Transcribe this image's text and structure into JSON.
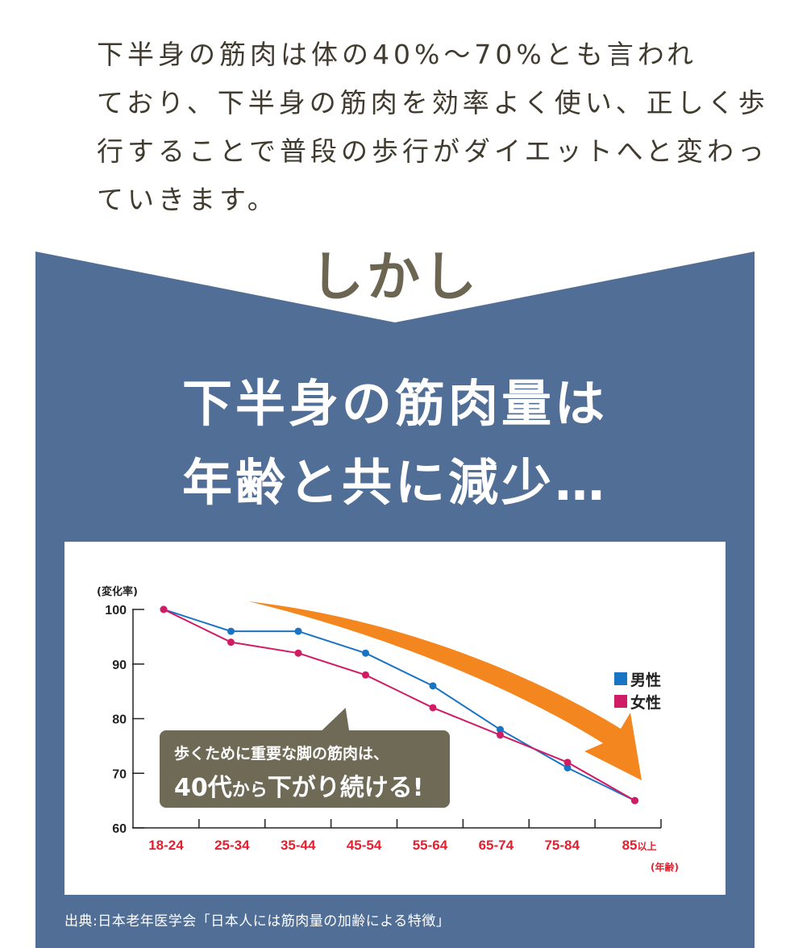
{
  "intro": {
    "lines": [
      "下半身の筋肉は体の40%～70%とも言われ",
      "ており、下半身の筋肉を効率よく使い、正しく歩",
      "行することで普段の歩行がダイエットへと変わっ",
      "ていきます。"
    ]
  },
  "divider": {
    "label": "しかし"
  },
  "headline": {
    "line1": "下半身の筋肉量は",
    "line2": "年齢と共に減少…"
  },
  "colors": {
    "band": "#516e96",
    "male": "#1a74c4",
    "female": "#d01c65",
    "arrow": "#f3861f",
    "callout": "#6e6a55"
  },
  "chart_data": {
    "type": "line",
    "ylabel": "(変化率)",
    "xlabel_unit": "(年齢)",
    "ylim": [
      60,
      100
    ],
    "yticks": [
      100,
      90,
      80,
      70,
      60
    ],
    "xtick_labels": [
      "18-24",
      "25-34",
      "35-44",
      "45-54",
      "55-64",
      "65-74",
      "75-84",
      "85"
    ],
    "last_tick_suffix": "以上",
    "x": [
      0,
      1,
      2,
      3,
      4,
      5,
      6,
      7
    ],
    "series": [
      {
        "name": "男性",
        "values": [
          100,
          96,
          96,
          92,
          86,
          78,
          71,
          65
        ]
      },
      {
        "name": "女性",
        "values": [
          100,
          94,
          92,
          88,
          82,
          77,
          72,
          65
        ]
      }
    ],
    "legend": "right",
    "annotation": {
      "line1": "歩くために重要な脚の筋肉は、",
      "line2_main": "40代",
      "line2_small": "から",
      "line2_rest": "下がり続ける!"
    }
  },
  "source": "出典:日本老年医学会「日本人には筋肉量の加齢による特徴」"
}
